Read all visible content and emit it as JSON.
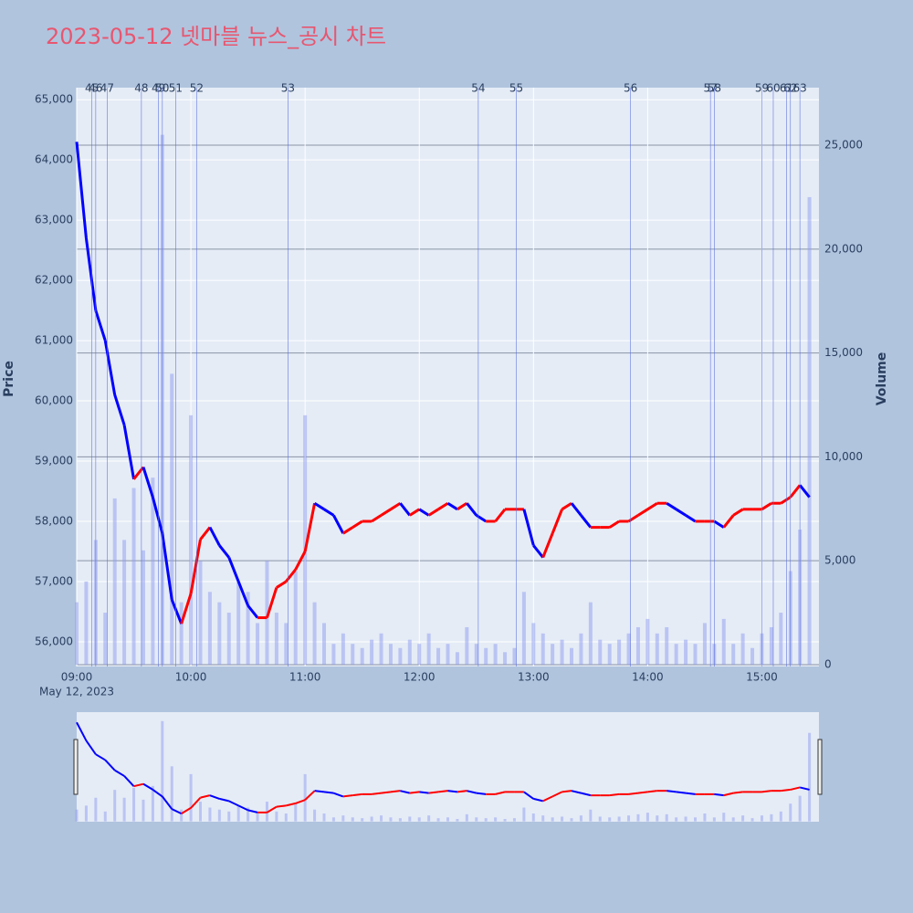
{
  "chart_data": {
    "type": "candlestick_volume",
    "title": "2023-05-12 넷마블 뉴스_공시 차트",
    "y_label": "Price",
    "y2_label": "Volume",
    "date_label": "May 12, 2023",
    "x": [
      "09:00",
      "09:05",
      "09:10",
      "09:15",
      "09:20",
      "09:25",
      "09:30",
      "09:35",
      "09:40",
      "09:45",
      "09:50",
      "09:55",
      "10:00",
      "10:05",
      "10:10",
      "10:15",
      "10:20",
      "10:25",
      "10:30",
      "10:35",
      "10:40",
      "10:45",
      "10:50",
      "10:55",
      "11:00",
      "11:05",
      "11:10",
      "11:15",
      "11:20",
      "11:25",
      "11:30",
      "11:35",
      "11:40",
      "11:45",
      "11:50",
      "11:55",
      "12:00",
      "12:05",
      "12:10",
      "12:15",
      "12:20",
      "12:25",
      "12:30",
      "12:35",
      "12:40",
      "12:45",
      "12:50",
      "12:55",
      "13:00",
      "13:05",
      "13:10",
      "13:15",
      "13:20",
      "13:25",
      "13:30",
      "13:35",
      "13:40",
      "13:45",
      "13:50",
      "13:55",
      "14:00",
      "14:05",
      "14:10",
      "14:15",
      "14:20",
      "14:25",
      "14:30",
      "14:35",
      "14:40",
      "14:45",
      "14:50",
      "14:55",
      "15:00",
      "15:05",
      "15:10",
      "15:15",
      "15:20",
      "15:25"
    ],
    "series": [
      {
        "name": "Price",
        "increasing_color": "#ff0000",
        "decreasing_color": "#0000ff",
        "values": [
          64300,
          62700,
          61500,
          61000,
          60100,
          59600,
          58700,
          58900,
          58400,
          57800,
          56700,
          56300,
          56800,
          57700,
          57900,
          57600,
          57400,
          57000,
          56600,
          56400,
          56400,
          56900,
          57000,
          57200,
          57500,
          58300,
          58200,
          58100,
          57800,
          57900,
          58000,
          58000,
          58100,
          58200,
          58300,
          58100,
          58200,
          58100,
          58200,
          58300,
          58200,
          58300,
          58100,
          58000,
          58000,
          58200,
          58200,
          58200,
          57600,
          57400,
          57800,
          58200,
          58300,
          58100,
          57900,
          57900,
          57900,
          58000,
          58000,
          58100,
          58200,
          58300,
          58300,
          58200,
          58100,
          58000,
          58000,
          58000,
          57900,
          58100,
          58200,
          58200,
          58200,
          58300,
          58300,
          58400,
          58600,
          58400
        ]
      },
      {
        "name": "Volume",
        "axis": "y2",
        "color": "#8f9cf0",
        "values": [
          3000,
          4000,
          6000,
          2500,
          8000,
          6000,
          8500,
          5500,
          9000,
          25500,
          14000,
          3000,
          12000,
          5000,
          3500,
          3000,
          2500,
          4000,
          3500,
          2000,
          5000,
          2500,
          2000,
          4500,
          12000,
          3000,
          2000,
          1000,
          1500,
          1000,
          800,
          1200,
          1500,
          1000,
          800,
          1200,
          1000,
          1500,
          800,
          1000,
          600,
          1800,
          1000,
          800,
          1000,
          600,
          800,
          3500,
          2000,
          1500,
          1000,
          1200,
          800,
          1500,
          3000,
          1200,
          1000,
          1200,
          1500,
          1800,
          2200,
          1500,
          1800,
          1000,
          1200,
          1000,
          2000,
          1000,
          2200,
          1000,
          1500,
          800,
          1500,
          1800,
          2500,
          4500,
          6500,
          22500
        ]
      }
    ],
    "xlim": [
      "09:00",
      "15:30"
    ],
    "xticks": [
      "09:00",
      "10:00",
      "11:00",
      "12:00",
      "13:00",
      "14:00",
      "15:00"
    ],
    "ylim": [
      55590,
      65200
    ],
    "yticks": [
      {
        "value": 56000,
        "label": "56,000"
      },
      {
        "value": 57000,
        "label": "57,000"
      },
      {
        "value": 58000,
        "label": "58,000"
      },
      {
        "value": 59000,
        "label": "59,000"
      },
      {
        "value": 60000,
        "label": "60,000"
      },
      {
        "value": 61000,
        "label": "61,000"
      },
      {
        "value": 62000,
        "label": "62,000"
      },
      {
        "value": 63000,
        "label": "63,000"
      },
      {
        "value": 64000,
        "label": "64,000"
      },
      {
        "value": 65000,
        "label": "65,000"
      }
    ],
    "y2lim": [
      -90,
      27770
    ],
    "y2ticks": [
      0,
      {
        "value": 5000,
        "label": "5,000"
      },
      {
        "value": 10000,
        "label": "10,000"
      },
      {
        "value": 15000,
        "label": "15,000"
      },
      {
        "value": 20000,
        "label": "20,000"
      },
      {
        "value": 25000,
        "label": "25,000"
      }
    ],
    "news": [
      {
        "label": "45",
        "x": "09:08"
      },
      {
        "label": "46",
        "x": "09:10"
      },
      {
        "label": "47",
        "x": "09:16"
      },
      {
        "label": "48",
        "x": "09:34"
      },
      {
        "label": "49",
        "x": "09:43"
      },
      {
        "label": "50",
        "x": "09:45"
      },
      {
        "label": "51",
        "x": "09:52"
      },
      {
        "label": "52",
        "x": "10:03"
      },
      {
        "label": "53",
        "x": "10:51"
      },
      {
        "label": "54",
        "x": "12:31"
      },
      {
        "label": "55",
        "x": "12:51"
      },
      {
        "label": "56",
        "x": "13:51"
      },
      {
        "label": "57",
        "x": "14:33"
      },
      {
        "label": "58",
        "x": "14:35"
      },
      {
        "label": "59",
        "x": "15:00"
      },
      {
        "label": "60",
        "x": "15:06"
      },
      {
        "label": "61",
        "x": "15:13"
      },
      {
        "label": "62",
        "x": "15:15"
      },
      {
        "label": "63",
        "x": "15:20"
      }
    ],
    "grid": true
  }
}
